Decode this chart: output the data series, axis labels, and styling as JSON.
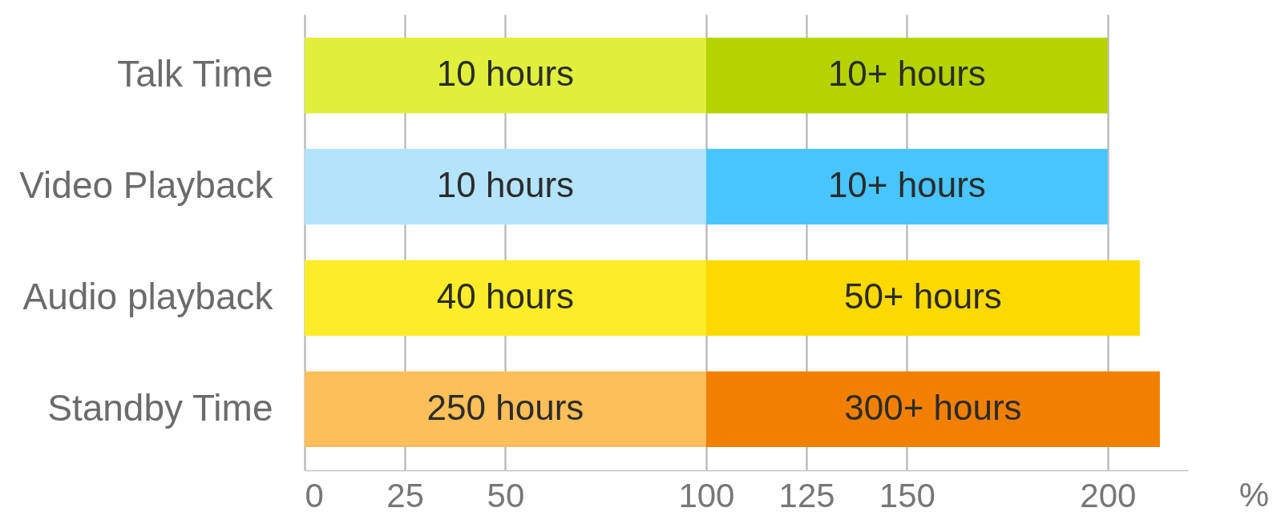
{
  "chart_data": {
    "type": "bar",
    "orientation": "horizontal",
    "stacked": true,
    "categories": [
      "Talk Time",
      "Video Playback",
      "Audio playback",
      "Standby Time"
    ],
    "series": [
      {
        "colors": [
          "#e0ef3c",
          "#b4e3fc",
          "#fdec2a",
          "#fcbf59"
        ],
        "values": [
          100,
          100,
          100,
          100
        ]
      },
      {
        "colors": [
          "#b5d300",
          "#48c5fd",
          "#fcd900",
          "#f28000"
        ],
        "values": [
          100,
          100,
          108,
          113
        ]
      }
    ],
    "annotations": [
      "10 hours",
      "10+ hours",
      "10 hours",
      "10+ hours",
      "40 hours",
      "50+ hours",
      "250 hours",
      "300+ hours"
    ],
    "xlabel": "%",
    "xlim": [
      0,
      220
    ],
    "xticks": [
      0,
      25,
      50,
      100,
      125,
      150,
      200
    ],
    "grid": "x"
  }
}
